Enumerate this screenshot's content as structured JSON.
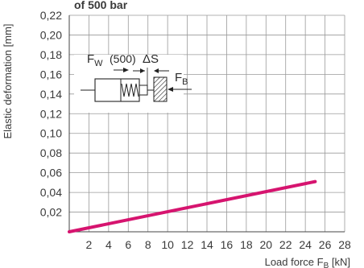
{
  "header_fragment": "of 500 bar",
  "chart_data": {
    "type": "line",
    "xlabel": "Load force F",
    "xlabel_sub": "B",
    "xlabel_unit": " [kN]",
    "ylabel": "Elastic deformation [mm]",
    "xlim": [
      0,
      28
    ],
    "ylim": [
      0,
      0.22
    ],
    "x_ticks": [
      2,
      4,
      6,
      8,
      10,
      12,
      14,
      16,
      18,
      20,
      22,
      24,
      26,
      28
    ],
    "y_ticks": [
      0.02,
      0.04,
      0.06,
      0.08,
      0.1,
      0.12,
      0.14,
      0.16,
      0.18,
      0.2,
      0.22
    ],
    "y_tick_labels": [
      "0,02",
      "0,04",
      "0,06",
      "0,08",
      "0,10",
      "0,12",
      "0,14",
      "0,16",
      "0,18",
      "0,20",
      "0,22"
    ],
    "grid": true,
    "series": [
      {
        "color": "#d6146f",
        "x": [
          0,
          25
        ],
        "y": [
          0,
          0.051
        ]
      }
    ]
  },
  "inset": {
    "fw_label": "F",
    "fw_sub": "W",
    "fw_value": "(500)",
    "ds_label": "ΔS",
    "fb_label": "F",
    "fb_sub": "B"
  }
}
